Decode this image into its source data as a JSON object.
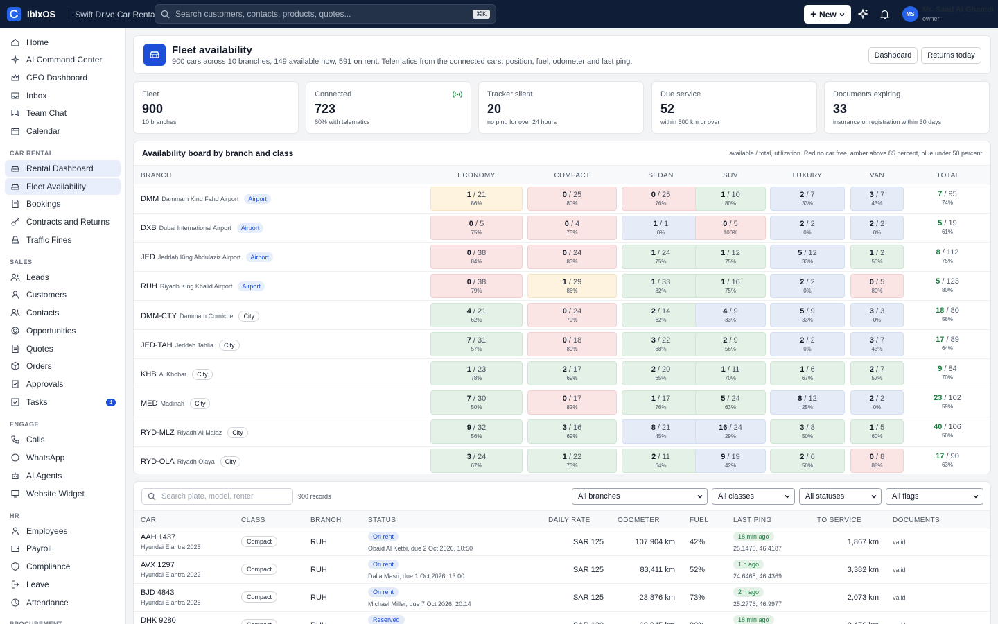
{
  "topbar": {
    "app_name": "IbixOS",
    "org_name": "Swift Drive Car Rental",
    "search_placeholder": "Search customers, contacts, products, quotes...",
    "search_shortcut": "⌘K",
    "new_label": "New",
    "user_initials": "MS",
    "user_name": "Mr. Saad Al Ghamdi",
    "user_role": "owner"
  },
  "sidebar": {
    "main": [
      "Home",
      "AI Command Center",
      "CEO Dashboard",
      "Inbox",
      "Team Chat",
      "Calendar"
    ],
    "car_rental_title": "CAR RENTAL",
    "car_rental": [
      "Rental Dashboard",
      "Fleet Availability",
      "Bookings",
      "Contracts and Returns",
      "Traffic Fines"
    ],
    "sales_title": "SALES",
    "sales": [
      "Leads",
      "Customers",
      "Contacts",
      "Opportunities",
      "Quotes",
      "Orders",
      "Approvals",
      "Tasks"
    ],
    "tasks_badge": "4",
    "engage_title": "ENGAGE",
    "engage": [
      "Calls",
      "WhatsApp",
      "AI Agents",
      "Website Widget"
    ],
    "hr_title": "HR",
    "hr": [
      "Employees",
      "Payroll",
      "Compliance",
      "Leave",
      "Attendance"
    ],
    "procurement_title": "PROCUREMENT"
  },
  "header": {
    "title": "Fleet availability",
    "subtitle": "900 cars across 10 branches, 149 available now, 591 on rent. Telematics from the connected cars: position, fuel, odometer and last ping.",
    "dashboard_button": "Dashboard",
    "returns_button": "Returns today"
  },
  "stats": [
    {
      "label": "Fleet",
      "value": "900",
      "note": "10 branches"
    },
    {
      "label": "Connected",
      "value": "723",
      "note": "80% with telematics"
    },
    {
      "label": "Tracker silent",
      "value": "20",
      "note": "no ping for over 24 hours"
    },
    {
      "label": "Due service",
      "value": "52",
      "note": "within 500 km or over"
    },
    {
      "label": "Documents expiring",
      "value": "33",
      "note": "insurance or registration within 30 days"
    }
  ],
  "board": {
    "title": "Availability board by branch and class",
    "legend": "available / total, utilization. Red no car free, amber above 85 percent, blue under 50 percent",
    "columns": [
      "BRANCH",
      "ECONOMY",
      "COMPACT",
      "SEDAN",
      "SUV",
      "LUXURY",
      "VAN",
      "TOTAL"
    ],
    "rows": [
      {
        "code": "DMM",
        "place": "Dammam King Fahd Airport",
        "tag": "Airport",
        "cells": [
          [
            "1",
            "/ 21",
            "86%",
            "amber"
          ],
          [
            "0",
            "/ 25",
            "80%",
            "red"
          ],
          [
            "0",
            "/ 25",
            "76%",
            "red"
          ],
          [
            "1",
            "/ 10",
            "80%",
            "green"
          ],
          [
            "2",
            "/ 7",
            "33%",
            "blue"
          ],
          [
            "3",
            "/ 7",
            "43%",
            "blue"
          ]
        ],
        "total": [
          "7",
          "/ 95",
          "74%"
        ]
      },
      {
        "code": "DXB",
        "place": "Dubai International Airport",
        "tag": "Airport",
        "cells": [
          [
            "0",
            "/ 5",
            "75%",
            "red"
          ],
          [
            "0",
            "/ 4",
            "75%",
            "red"
          ],
          [
            "1",
            "/ 1",
            "0%",
            "blue"
          ],
          [
            "0",
            "/ 5",
            "100%",
            "red"
          ],
          [
            "2",
            "/ 2",
            "0%",
            "blue"
          ],
          [
            "2",
            "/ 2",
            "0%",
            "blue"
          ]
        ],
        "total": [
          "5",
          "/ 19",
          "61%"
        ]
      },
      {
        "code": "JED",
        "place": "Jeddah King Abdulaziz Airport",
        "tag": "Airport",
        "cells": [
          [
            "0",
            "/ 38",
            "84%",
            "red"
          ],
          [
            "0",
            "/ 24",
            "83%",
            "red"
          ],
          [
            "1",
            "/ 24",
            "75%",
            "green"
          ],
          [
            "1",
            "/ 12",
            "75%",
            "green"
          ],
          [
            "5",
            "/ 12",
            "33%",
            "blue"
          ],
          [
            "1",
            "/ 2",
            "50%",
            "green"
          ]
        ],
        "total": [
          "8",
          "/ 112",
          "75%"
        ]
      },
      {
        "code": "RUH",
        "place": "Riyadh King Khalid Airport",
        "tag": "Airport",
        "cells": [
          [
            "0",
            "/ 38",
            "79%",
            "red"
          ],
          [
            "1",
            "/ 29",
            "86%",
            "amber"
          ],
          [
            "1",
            "/ 33",
            "82%",
            "green"
          ],
          [
            "1",
            "/ 16",
            "75%",
            "green"
          ],
          [
            "2",
            "/ 2",
            "0%",
            "blue"
          ],
          [
            "0",
            "/ 5",
            "80%",
            "red"
          ]
        ],
        "total": [
          "5",
          "/ 123",
          "80%"
        ]
      },
      {
        "code": "DMM-CTY",
        "place": "Dammam Corniche",
        "tag": "City",
        "cells": [
          [
            "4",
            "/ 21",
            "62%",
            "green"
          ],
          [
            "0",
            "/ 24",
            "79%",
            "red"
          ],
          [
            "2",
            "/ 14",
            "62%",
            "green"
          ],
          [
            "4",
            "/ 9",
            "33%",
            "blue"
          ],
          [
            "5",
            "/ 9",
            "33%",
            "blue"
          ],
          [
            "3",
            "/ 3",
            "0%",
            "blue"
          ]
        ],
        "total": [
          "18",
          "/ 80",
          "58%"
        ]
      },
      {
        "code": "JED-TAH",
        "place": "Jeddah Tahlia",
        "tag": "City",
        "cells": [
          [
            "7",
            "/ 31",
            "57%",
            "green"
          ],
          [
            "0",
            "/ 18",
            "89%",
            "red"
          ],
          [
            "3",
            "/ 22",
            "68%",
            "green"
          ],
          [
            "2",
            "/ 9",
            "56%",
            "green"
          ],
          [
            "2",
            "/ 2",
            "0%",
            "blue"
          ],
          [
            "3",
            "/ 7",
            "43%",
            "blue"
          ]
        ],
        "total": [
          "17",
          "/ 89",
          "64%"
        ]
      },
      {
        "code": "KHB",
        "place": "Al Khobar",
        "tag": "City",
        "cells": [
          [
            "1",
            "/ 23",
            "78%",
            "green"
          ],
          [
            "2",
            "/ 17",
            "69%",
            "green"
          ],
          [
            "2",
            "/ 20",
            "65%",
            "green"
          ],
          [
            "1",
            "/ 11",
            "70%",
            "green"
          ],
          [
            "1",
            "/ 6",
            "67%",
            "green"
          ],
          [
            "2",
            "/ 7",
            "57%",
            "green"
          ]
        ],
        "total": [
          "9",
          "/ 84",
          "70%"
        ]
      },
      {
        "code": "MED",
        "place": "Madinah",
        "tag": "City",
        "cells": [
          [
            "7",
            "/ 30",
            "50%",
            "green"
          ],
          [
            "0",
            "/ 17",
            "82%",
            "red"
          ],
          [
            "1",
            "/ 17",
            "76%",
            "green"
          ],
          [
            "5",
            "/ 24",
            "63%",
            "green"
          ],
          [
            "8",
            "/ 12",
            "25%",
            "blue"
          ],
          [
            "2",
            "/ 2",
            "0%",
            "blue"
          ]
        ],
        "total": [
          "23",
          "/ 102",
          "59%"
        ]
      },
      {
        "code": "RYD-MLZ",
        "place": "Riyadh Al Malaz",
        "tag": "City",
        "cells": [
          [
            "9",
            "/ 32",
            "56%",
            "green"
          ],
          [
            "3",
            "/ 16",
            "69%",
            "green"
          ],
          [
            "8",
            "/ 21",
            "45%",
            "blue"
          ],
          [
            "16",
            "/ 24",
            "29%",
            "blue"
          ],
          [
            "3",
            "/ 8",
            "50%",
            "green"
          ],
          [
            "1",
            "/ 5",
            "60%",
            "green"
          ]
        ],
        "total": [
          "40",
          "/ 106",
          "50%"
        ]
      },
      {
        "code": "RYD-OLA",
        "place": "Riyadh Olaya",
        "tag": "City",
        "cells": [
          [
            "3",
            "/ 24",
            "67%",
            "green"
          ],
          [
            "1",
            "/ 22",
            "73%",
            "green"
          ],
          [
            "2",
            "/ 11",
            "64%",
            "green"
          ],
          [
            "9",
            "/ 19",
            "42%",
            "blue"
          ],
          [
            "2",
            "/ 6",
            "50%",
            "green"
          ],
          [
            "0",
            "/ 8",
            "88%",
            "red"
          ]
        ],
        "total": [
          "17",
          "/ 90",
          "63%"
        ]
      }
    ]
  },
  "list": {
    "search_placeholder": "Search plate, model, renter",
    "records": "900 records",
    "filters": [
      "All branches",
      "All classes",
      "All statuses",
      "All flags"
    ],
    "columns": [
      "CAR",
      "CLASS",
      "BRANCH",
      "STATUS",
      "DAILY RATE",
      "ODOMETER",
      "FUEL",
      "LAST PING",
      "TO SERVICE",
      "DOCUMENTS"
    ],
    "rows": [
      {
        "plate": "AAH 1437",
        "model": "Hyundai Elantra 2025",
        "class": "Compact",
        "branch": "RUH",
        "status": "On rent",
        "status_note": "Obaid Al Ketbi, due 2 Oct 2026, 10:50",
        "rate": "SAR 125",
        "odometer": "107,904 km",
        "fuel": "42%",
        "ping": "18 min ago",
        "coords": "25.1470, 46.4187",
        "to_service": "1,867 km",
        "docs": "valid"
      },
      {
        "plate": "AVX 1297",
        "model": "Hyundai Elantra 2022",
        "class": "Compact",
        "branch": "RUH",
        "status": "On rent",
        "status_note": "Dalia Masri, due 1 Oct 2026, 13:00",
        "rate": "SAR 125",
        "odometer": "83,411 km",
        "fuel": "52%",
        "ping": "1 h ago",
        "coords": "24.6468, 46.4369",
        "to_service": "3,382 km",
        "docs": "valid"
      },
      {
        "plate": "BJD 4843",
        "model": "Hyundai Elantra 2025",
        "class": "Compact",
        "branch": "RUH",
        "status": "On rent",
        "status_note": "Michael Miller, due 7 Oct 2026, 20:14",
        "rate": "SAR 125",
        "odometer": "23,876 km",
        "fuel": "73%",
        "ping": "2 h ago",
        "coords": "25.2776, 46.9977",
        "to_service": "2,073 km",
        "docs": "valid"
      },
      {
        "plate": "DHK 9280",
        "model": "",
        "class": "Compact",
        "branch": "RUH",
        "status": "Reserved",
        "status_note": "",
        "rate": "SAR 130",
        "odometer": "60,045 km",
        "fuel": "80%",
        "ping": "18 min ago",
        "coords": "",
        "to_service": "8,476 km",
        "docs": "valid"
      }
    ]
  }
}
